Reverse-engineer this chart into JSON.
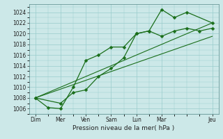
{
  "bg_color": "#cce8e8",
  "grid_color": "#99cccc",
  "line_color": "#1a6e1a",
  "xlabel": "Pression niveau de la mer( hPa )",
  "ylim": [
    1005,
    1025.5
  ],
  "yticks": [
    1006,
    1008,
    1010,
    1012,
    1014,
    1016,
    1018,
    1020,
    1022,
    1024
  ],
  "xlim": [
    -0.5,
    14.5
  ],
  "day_positions": [
    0,
    2,
    4,
    6,
    8,
    10,
    14
  ],
  "day_labels": [
    "Dim",
    "Mer",
    "Ven",
    "Sam",
    "Lun",
    "Mar",
    "Jeu"
  ],
  "series1": {
    "x": [
      0,
      1,
      2,
      3,
      4,
      5,
      6,
      7,
      8,
      9,
      10,
      11,
      12,
      13,
      14
    ],
    "y": [
      1008.0,
      1006.2,
      1006.0,
      1010.0,
      1015.0,
      1016.0,
      1017.5,
      1017.5,
      1020.0,
      1020.5,
      1019.5,
      1020.5,
      1021.0,
      1020.5,
      1021.0
    ]
  },
  "series2": {
    "x": [
      0,
      2,
      3,
      4,
      5,
      6,
      7,
      8,
      9,
      10,
      11,
      12,
      14
    ],
    "y": [
      1008.0,
      1007.0,
      1009.0,
      1009.5,
      1012.0,
      1013.5,
      1015.5,
      1020.0,
      1020.5,
      1024.5,
      1023.0,
      1024.0,
      1022.0
    ]
  },
  "linear1": {
    "x": [
      0,
      14
    ],
    "y": [
      1008.0,
      1019.5
    ]
  },
  "linear2": {
    "x": [
      0,
      14
    ],
    "y": [
      1008.0,
      1022.0
    ]
  }
}
